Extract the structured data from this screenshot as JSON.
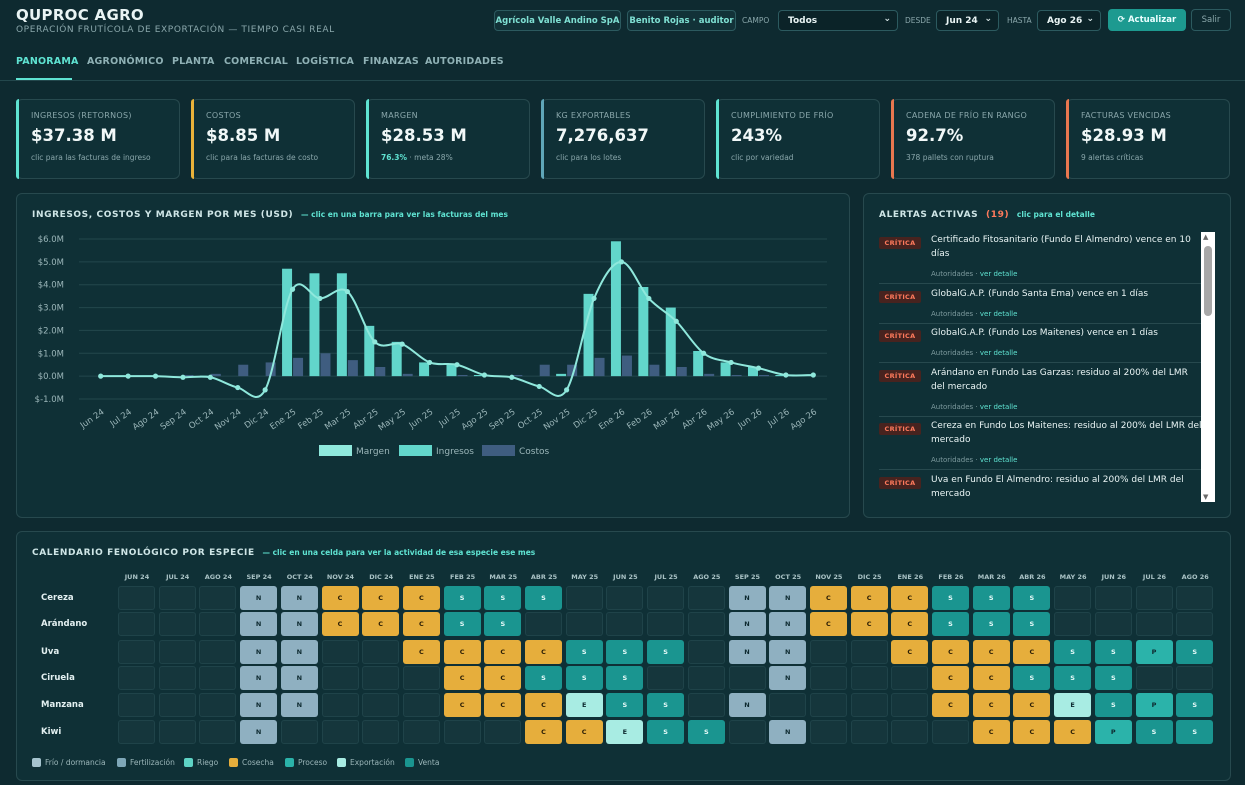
{
  "brand": {
    "title": "QUPROC AGRO",
    "subtitle": "OPERACIÓN FRUTÍCOLA DE EXPORTACIÓN — TIEMPO CASI REAL"
  },
  "header": {
    "company": "Agrícola Valle Andino SpA",
    "user": "Benito Rojas · auditor",
    "campo_label": "CAMPO",
    "campo_value": "Todos",
    "desde_label": "DESDE",
    "desde_value": "Jun 24",
    "hasta_label": "HASTA",
    "hasta_value": "Ago 26",
    "refresh_label": "Actualizar",
    "logout_label": "Salir"
  },
  "tabs": [
    "PANORAMA",
    "AGRONÓMICO",
    "PLANTA",
    "COMERCIAL",
    "LOGÍSTICA",
    "FINANZAS",
    "AUTORIDADES"
  ],
  "kpis": [
    {
      "label": "INGRESOS (RETORNOS)",
      "value": "$37.38 M",
      "note": "clic para las facturas de ingreso",
      "color": "#5fe3d2"
    },
    {
      "label": "COSTOS",
      "value": "$8.85 M",
      "note": "clic para las facturas de costo",
      "color": "#e9b23a"
    },
    {
      "label": "MARGEN",
      "value": "$28.53 M",
      "note_strong": "76.3%",
      "note": " · meta 28%",
      "color": "#5fe3d2"
    },
    {
      "label": "KG EXPORTABLES",
      "value": "7,276,637",
      "note": "clic para los lotes",
      "color": "#5fa6b8"
    },
    {
      "label": "CUMPLIMIENTO DE FRÍO",
      "value": "243%",
      "note": "clic por variedad",
      "color": "#5fe3d2"
    },
    {
      "label": "CADENA DE FRÍO EN RANGO",
      "value": "92.7%",
      "note": "378 pallets con ruptura",
      "color": "#e8774f"
    },
    {
      "label": "FACTURAS VENCIDAS",
      "value": "$28.93 M",
      "note": "9 alertas críticas",
      "color": "#e8774f"
    }
  ],
  "chart_panel": {
    "title": "INGRESOS, COSTOS Y MARGEN POR MES (USD)",
    "hint": "— clic en una barra para ver las facturas del mes"
  },
  "chart_data": {
    "type": "bar",
    "categories": [
      "Jun 24",
      "Jul 24",
      "Ago 24",
      "Sep 24",
      "Oct 24",
      "Nov 24",
      "Dic 24",
      "Ene 25",
      "Feb 25",
      "Mar 25",
      "Abr 25",
      "May 25",
      "Jun 25",
      "Jul 25",
      "Ago 25",
      "Sep 25",
      "Oct 25",
      "Nov 25",
      "Dic 25",
      "Ene 26",
      "Feb 26",
      "Mar 26",
      "Abr 26",
      "May 26",
      "Jun 26",
      "Jul 26",
      "Ago 26"
    ],
    "series": [
      {
        "name": "Margen",
        "type": "line",
        "values": [
          0,
          0,
          0,
          -0.05,
          -0.05,
          -0.5,
          -0.6,
          3.8,
          3.4,
          3.7,
          1.5,
          1.4,
          0.6,
          0.5,
          0.05,
          -0.05,
          -0.45,
          -0.6,
          3.4,
          5.0,
          3.4,
          2.4,
          1.0,
          0.6,
          0.35,
          0.05,
          0.05
        ]
      },
      {
        "name": "Ingresos",
        "type": "bar",
        "values": [
          0,
          0,
          0,
          0,
          0.02,
          0,
          0,
          4.7,
          4.5,
          4.5,
          2.2,
          1.5,
          0.6,
          0.5,
          0.05,
          0,
          0,
          0.1,
          3.6,
          5.9,
          3.9,
          3.0,
          1.1,
          0.6,
          0.4,
          0.05,
          0.05
        ]
      },
      {
        "name": "Costos",
        "type": "bar",
        "values": [
          0,
          0,
          0,
          0.05,
          0.1,
          0.5,
          0.6,
          0.8,
          1.0,
          0.7,
          0.4,
          0.1,
          0,
          0.05,
          0,
          0.05,
          0.5,
          0.5,
          0.8,
          0.9,
          0.5,
          0.4,
          0.1,
          0.05,
          0.05,
          0.05,
          0
        ]
      }
    ],
    "ylim": [
      -1.0,
      6.0
    ],
    "yticks": [
      "$6.0M",
      "$5.0M",
      "$4.0M",
      "$3.0M",
      "$2.0M",
      "$1.0M",
      "$0.0M",
      "$-1.0M"
    ],
    "legend_position": "bottom",
    "colors": {
      "Margen": "#8fe8dc",
      "Ingresos": "#62d6cb",
      "Costos": "#3f5d80"
    }
  },
  "alerts_panel": {
    "title": "ALERTAS ACTIVAS",
    "count": "(19)",
    "hint": "clic para el detalle"
  },
  "alerts": [
    {
      "badge": "CRÍTICA",
      "text": "Certificado Fitosanitario (Fundo El Almendro) vence en 10 días",
      "meta": "Autoridades · ",
      "link": "ver detalle"
    },
    {
      "badge": "CRÍTICA",
      "text": "GlobalG.A.P. (Fundo Santa Ema) vence en 1 días",
      "meta": "Autoridades · ",
      "link": "ver detalle"
    },
    {
      "badge": "CRÍTICA",
      "text": "GlobalG.A.P. (Fundo Los Maitenes) vence en 1 días",
      "meta": "Autoridades · ",
      "link": "ver detalle"
    },
    {
      "badge": "CRÍTICA",
      "text": "Arándano en Fundo Las Garzas: residuo al 200% del LMR del mercado",
      "meta": "Autoridades · ",
      "link": "ver detalle"
    },
    {
      "badge": "CRÍTICA",
      "text": "Cereza en Fundo Los Maitenes: residuo al 200% del LMR del mercado",
      "meta": "Autoridades · ",
      "link": "ver detalle"
    },
    {
      "badge": "CRÍTICA",
      "text": "Uva en Fundo El Almendro: residuo al 200% del LMR del mercado",
      "meta": "",
      "link": ""
    }
  ],
  "calendar": {
    "title": "CALENDARIO FENOLÓGICO POR ESPECIE",
    "hint": "— clic en una celda para ver la actividad de esa especie ese mes",
    "months": [
      "JUN 24",
      "JUL 24",
      "AGO 24",
      "SEP 24",
      "OCT 24",
      "NOV 24",
      "DIC 24",
      "ENE 25",
      "FEB 25",
      "MAR 25",
      "ABR 25",
      "MAY 25",
      "JUN 25",
      "JUL 25",
      "AGO 25",
      "SEP 25",
      "OCT 25",
      "NOV 25",
      "DIC 25",
      "ENE 26",
      "FEB 26",
      "MAR 26",
      "ABR 26",
      "MAY 26",
      "JUN 26",
      "JUL 26",
      "AGO 26"
    ],
    "rows": [
      {
        "species": "Cereza",
        "cells": [
          "",
          "",
          "",
          "N",
          "N",
          "C",
          "C",
          "C",
          "S",
          "S",
          "S",
          "",
          "",
          "",
          "",
          "N",
          "N",
          "C",
          "C",
          "C",
          "S",
          "S",
          "S",
          "",
          "",
          "",
          ""
        ]
      },
      {
        "species": "Arándano",
        "cells": [
          "",
          "",
          "",
          "N",
          "N",
          "C",
          "C",
          "C",
          "S",
          "S",
          "",
          "",
          "",
          "",
          "",
          "N",
          "N",
          "C",
          "C",
          "C",
          "S",
          "S",
          "S",
          "",
          "",
          "",
          ""
        ]
      },
      {
        "species": "Uva",
        "cells": [
          "",
          "",
          "",
          "N",
          "N",
          "",
          "",
          "C",
          "C",
          "C",
          "C",
          "S",
          "S",
          "S",
          "",
          "N",
          "N",
          "",
          "",
          "C",
          "C",
          "C",
          "C",
          "S",
          "S",
          "P",
          "S"
        ]
      },
      {
        "species": "Ciruela",
        "cells": [
          "",
          "",
          "",
          "N",
          "N",
          "",
          "",
          "",
          "C",
          "C",
          "S",
          "S",
          "S",
          "",
          "",
          "",
          "N",
          "",
          "",
          "",
          "C",
          "C",
          "S",
          "S",
          "S",
          "",
          ""
        ]
      },
      {
        "species": "Manzana",
        "cells": [
          "",
          "",
          "",
          "N",
          "N",
          "",
          "",
          "",
          "C",
          "C",
          "C",
          "E",
          "S",
          "S",
          "",
          "N",
          "",
          "",
          "",
          "",
          "C",
          "C",
          "C",
          "E",
          "S",
          "P",
          "S"
        ]
      },
      {
        "species": "Kiwi",
        "cells": [
          "",
          "",
          "",
          "N",
          "",
          "",
          "",
          "",
          "",
          "",
          "C",
          "C",
          "E",
          "S",
          "S",
          "",
          "N",
          "",
          "",
          "",
          "",
          "C",
          "C",
          "C",
          "P",
          "S",
          "S"
        ]
      }
    ],
    "legend": [
      {
        "label": "Frío / dormancia",
        "color": "#a6c4cf"
      },
      {
        "label": "Fertilización",
        "color": "#7fa7b8"
      },
      {
        "label": "Riego",
        "color": "#5ed3c5"
      },
      {
        "label": "Cosecha",
        "color": "#e6ae3c"
      },
      {
        "label": "Proceso",
        "color": "#2bb3aa"
      },
      {
        "label": "Exportación",
        "color": "#a8ece3"
      },
      {
        "label": "Venta",
        "color": "#1a9590"
      }
    ]
  }
}
